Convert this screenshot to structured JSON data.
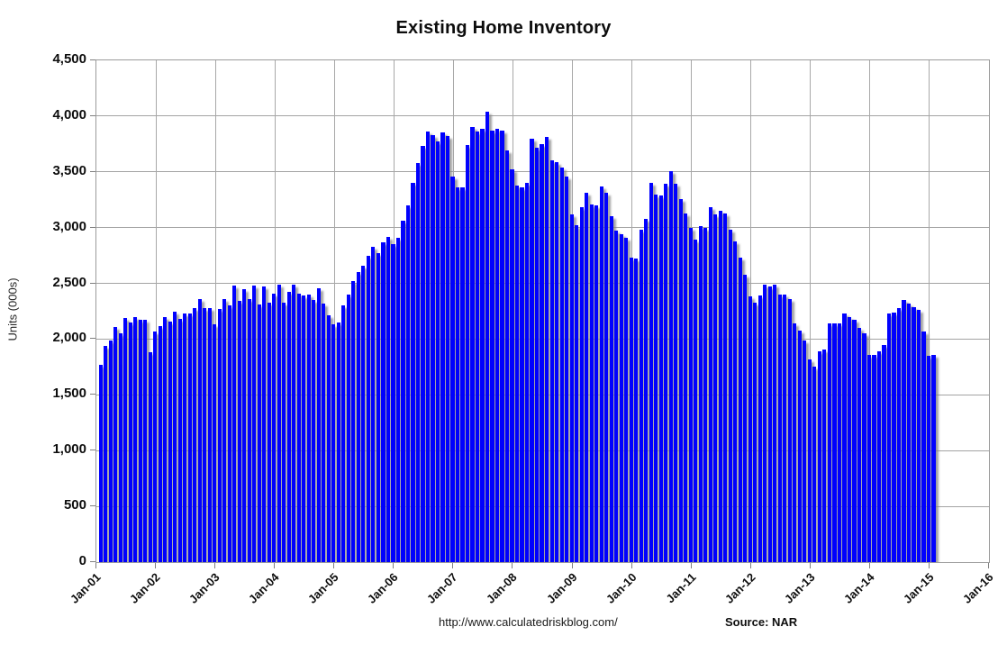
{
  "page": {
    "background": "#ffffff"
  },
  "chart_data": {
    "type": "bar",
    "title": "Existing Home Inventory",
    "ylabel": "Units (000s)",
    "ylim": [
      0,
      4500
    ],
    "ytick_interval": 500,
    "ytick_labels": [
      "0",
      "500",
      "1,000",
      "1,500",
      "2,000",
      "2,500",
      "3,000",
      "3,500",
      "4,000",
      "4,500"
    ],
    "xtick_labels": [
      "Jan-01",
      "Jan-02",
      "Jan-03",
      "Jan-04",
      "Jan-05",
      "Jan-06",
      "Jan-07",
      "Jan-08",
      "Jan-09",
      "Jan-10",
      "Jan-11",
      "Jan-12",
      "Jan-13",
      "Jan-14",
      "Jan-15",
      "Jan-16"
    ],
    "x_start": "Jan-2001",
    "x_end": "Jan-2015",
    "frequency": "monthly",
    "grid": "on",
    "legend": "none",
    "bar_color": "#0101fe",
    "gridline_color": "#a3a3a3",
    "values": [
      1770,
      1940,
      1990,
      2110,
      2050,
      2190,
      2150,
      2200,
      2170,
      2170,
      1880,
      2070,
      2120,
      2200,
      2160,
      2250,
      2180,
      2230,
      2230,
      2280,
      2360,
      2280,
      2280,
      2130,
      2270,
      2360,
      2300,
      2480,
      2340,
      2450,
      2360,
      2480,
      2310,
      2470,
      2330,
      2410,
      2490,
      2330,
      2420,
      2490,
      2410,
      2390,
      2400,
      2350,
      2460,
      2320,
      2210,
      2130,
      2150,
      2300,
      2400,
      2520,
      2600,
      2660,
      2750,
      2830,
      2770,
      2870,
      2920,
      2850,
      2910,
      3060,
      3200,
      3400,
      3580,
      3730,
      3860,
      3830,
      3770,
      3850,
      3820,
      3460,
      3360,
      3360,
      3740,
      3900,
      3860,
      3890,
      4040,
      3870,
      3890,
      3870,
      3690,
      3520,
      3380,
      3360,
      3400,
      3800,
      3720,
      3750,
      3810,
      3600,
      3590,
      3540,
      3460,
      3120,
      3020,
      3180,
      3310,
      3210,
      3200,
      3370,
      3310,
      3100,
      2970,
      2940,
      2910,
      2730,
      2720,
      2980,
      3080,
      3400,
      3300,
      3290,
      3390,
      3510,
      3390,
      3260,
      3130,
      3000,
      2890,
      3010,
      3000,
      3180,
      3120,
      3150,
      3130,
      2980,
      2880,
      2730,
      2580,
      2380,
      2330,
      2390,
      2490,
      2470,
      2490,
      2400,
      2400,
      2360,
      2140,
      2080,
      1990,
      1820,
      1750,
      1890,
      1910,
      2140,
      2140,
      2140,
      2230,
      2200,
      2170,
      2100,
      2050,
      1860,
      1860,
      1890,
      1950,
      2230,
      2240,
      2280,
      2350,
      2320,
      2290,
      2260,
      2070,
      1850,
      1860
    ]
  },
  "footer": {
    "url": "http://www.calculatedriskblog.com/",
    "source_label": "Source: NAR"
  }
}
